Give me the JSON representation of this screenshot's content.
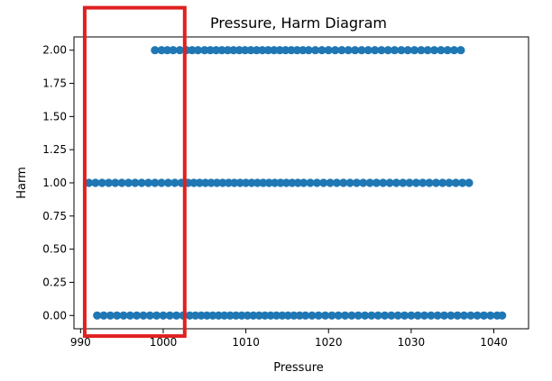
{
  "chart_data": {
    "type": "scatter",
    "title": "Pressure, Harm Diagram",
    "xlabel": "Pressure",
    "ylabel": "Harm",
    "xlim": [
      989.2,
      1044.2
    ],
    "ylim": [
      -0.1,
      2.1
    ],
    "x_ticks": [
      "990",
      "1000",
      "1010",
      "1020",
      "1030",
      "1040"
    ],
    "y_ticks": [
      "0.00",
      "0.25",
      "0.50",
      "0.75",
      "1.00",
      "1.25",
      "1.50",
      "1.75",
      "2.00"
    ],
    "grid": false,
    "marker_color": "#1f77b4",
    "series": [
      {
        "harm": 2,
        "pressure_min": 999,
        "pressure_max": 1036,
        "x": [
          999,
          999.8,
          1000.5,
          1001.2,
          1002,
          1002.8,
          1003.5,
          1004.2,
          1005,
          1005.7,
          1006.4,
          1007.1,
          1007.8,
          1008.5,
          1009.2,
          1009.9,
          1010.6,
          1011.3,
          1012,
          1012.7,
          1013.4,
          1014.1,
          1014.8,
          1015.5,
          1016.2,
          1016.9,
          1017.6,
          1018.4,
          1019.2,
          1020,
          1020.8,
          1021.6,
          1022.4,
          1023.2,
          1024,
          1024.8,
          1025.6,
          1026.4,
          1027.2,
          1028,
          1028.8,
          1029.6,
          1030.4,
          1031.2,
          1032,
          1032.8,
          1033.6,
          1034.4,
          1035.2,
          1036
        ]
      },
      {
        "harm": 1,
        "pressure_min": 991,
        "pressure_max": 1037,
        "x": [
          991,
          991.8,
          992.6,
          993.4,
          994.2,
          995,
          995.8,
          996.6,
          997.4,
          998.2,
          999,
          999.8,
          1000.6,
          1001.4,
          1002.2,
          1003,
          1003.7,
          1004.4,
          1005.1,
          1005.8,
          1006.5,
          1007.2,
          1007.9,
          1008.6,
          1009.3,
          1010,
          1010.7,
          1011.4,
          1012.1,
          1012.8,
          1013.5,
          1014.2,
          1014.9,
          1015.6,
          1016.3,
          1017,
          1017.8,
          1018.6,
          1019.4,
          1020.2,
          1021,
          1021.8,
          1022.6,
          1023.4,
          1024.2,
          1025,
          1025.8,
          1026.6,
          1027.4,
          1028.2,
          1029,
          1029.8,
          1030.6,
          1031.4,
          1032.2,
          1033,
          1033.8,
          1034.6,
          1035.4,
          1036.2,
          1037
        ]
      },
      {
        "harm": 0,
        "pressure_min": 992,
        "pressure_max": 1041,
        "x": [
          992,
          992.8,
          993.6,
          994.4,
          995.2,
          996,
          996.8,
          997.6,
          998.4,
          999.2,
          1000,
          1000.8,
          1001.6,
          1002.4,
          1003.2,
          1003.9,
          1004.6,
          1005.3,
          1006,
          1006.7,
          1007.4,
          1008.1,
          1008.8,
          1009.5,
          1010.2,
          1010.9,
          1011.6,
          1012.3,
          1013,
          1013.7,
          1014.4,
          1015.1,
          1015.8,
          1016.5,
          1017.2,
          1018,
          1018.8,
          1019.6,
          1020.4,
          1021.2,
          1022,
          1022.8,
          1023.6,
          1024.4,
          1025.2,
          1026,
          1026.8,
          1027.6,
          1028.4,
          1029.2,
          1030,
          1030.8,
          1031.6,
          1032.4,
          1033.2,
          1034,
          1034.8,
          1035.6,
          1036.4,
          1037.2,
          1038,
          1038.8,
          1039.6,
          1040.4,
          1041
        ]
      }
    ],
    "highlight_box": {
      "color": "#e02020",
      "x_range": [
        990.5,
        1002.6
      ],
      "y_range": [
        -0.155,
        2.32
      ]
    }
  }
}
